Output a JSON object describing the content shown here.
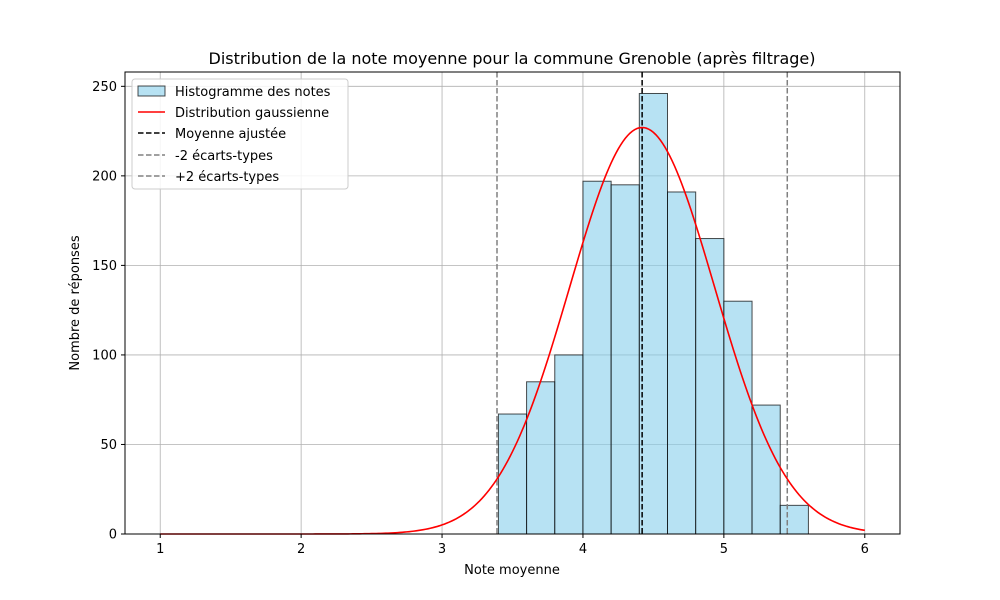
{
  "chart_data": {
    "type": "bar",
    "title": "Distribution de la note moyenne pour la commune Grenoble (après filtrage)",
    "xlabel": "Note moyenne",
    "ylabel": "Nombre de réponses",
    "xlim": [
      0.75,
      6.25
    ],
    "ylim": [
      0,
      258
    ],
    "xticks": [
      1,
      2,
      3,
      4,
      5,
      6
    ],
    "yticks": [
      0,
      50,
      100,
      150,
      200,
      250
    ],
    "grid": true,
    "legend_position": "top-left",
    "histogram": {
      "name": "Histogramme des notes",
      "bin_edges": [
        3.4,
        3.6,
        3.8,
        4.0,
        4.2,
        4.4,
        4.6,
        4.8,
        5.0,
        5.2,
        5.4,
        5.6
      ],
      "values": [
        67,
        85,
        100,
        197,
        195,
        246,
        191,
        165,
        130,
        72,
        16
      ],
      "fill": "#87ceeb",
      "edge": "#000000"
    },
    "gaussian": {
      "name": "Distribution gaussienne",
      "mean": 4.42,
      "std": 0.515,
      "peak": 227,
      "x_range": [
        1,
        6
      ],
      "color": "#ff0000"
    },
    "lines": [
      {
        "name": "Moyenne ajustée",
        "x": 4.42,
        "color": "#000000"
      },
      {
        "name": "-2 écarts-types",
        "x": 3.39,
        "color": "#808080"
      },
      {
        "name": "+2 écarts-types",
        "x": 5.45,
        "color": "#808080"
      }
    ]
  }
}
